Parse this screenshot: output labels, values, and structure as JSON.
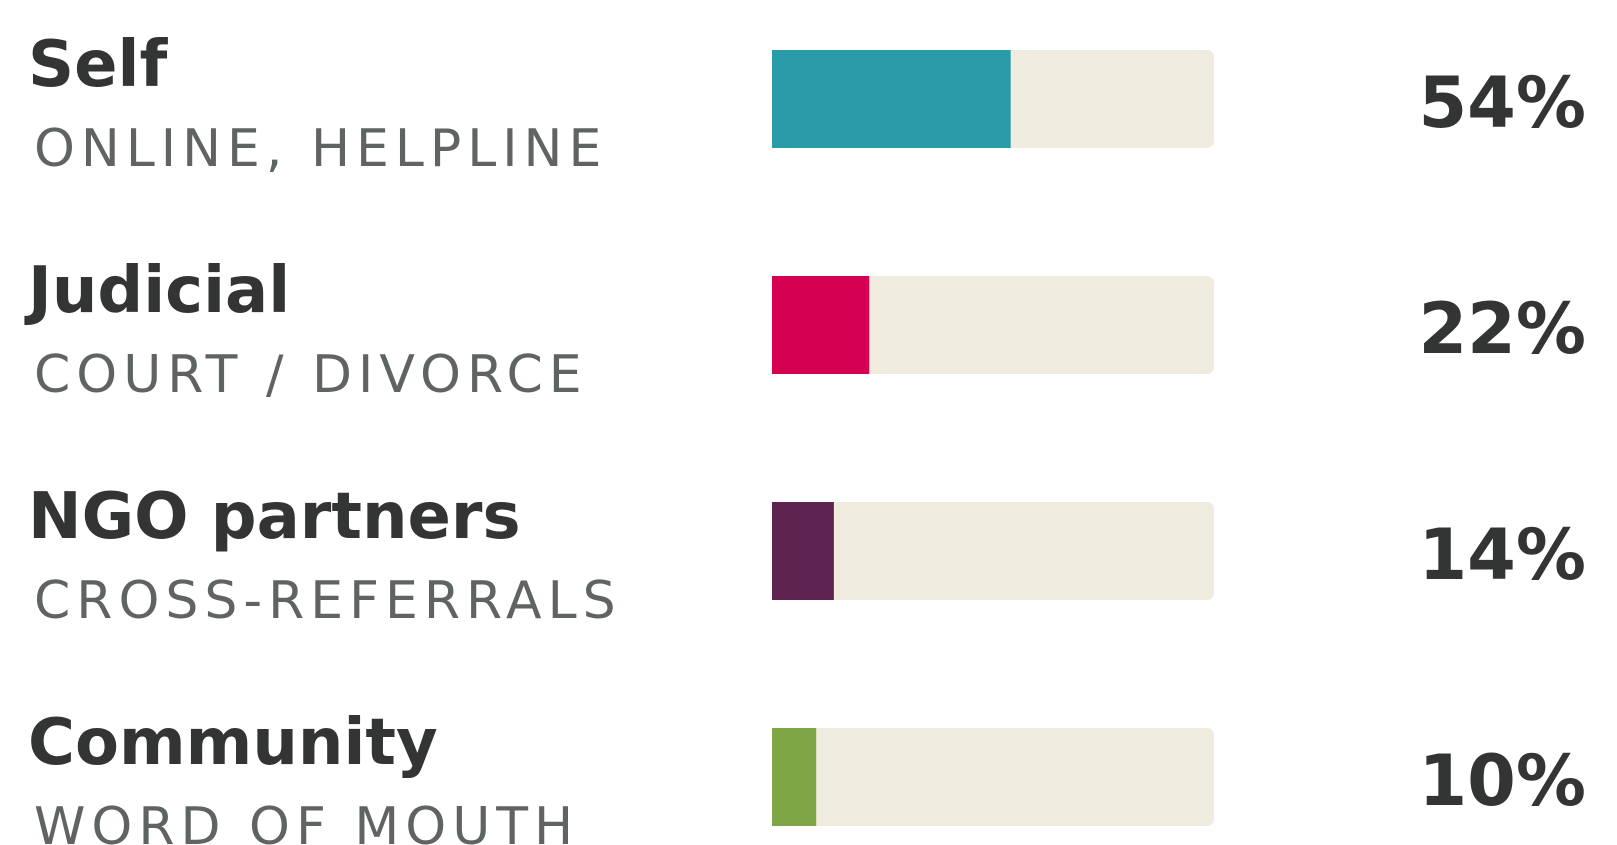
{
  "chart_data": {
    "type": "bar",
    "orientation": "horizontal",
    "categories": [
      "Self",
      "Judicial",
      "NGO partners",
      "Community"
    ],
    "sublabels": [
      "ONLINE, HELPLINE",
      "COURT / DIVORCE",
      "CROSS-REFERRALS",
      "WORD OF MOUTH"
    ],
    "values": [
      54,
      22,
      14,
      10
    ],
    "value_labels": [
      "54%",
      "22%",
      "14%",
      "10%"
    ],
    "colors": [
      "#2a9ba8",
      "#d60053",
      "#5e244f",
      "#7ea646"
    ],
    "track_color": "#f0ebdf",
    "xlim": [
      0,
      100
    ]
  }
}
